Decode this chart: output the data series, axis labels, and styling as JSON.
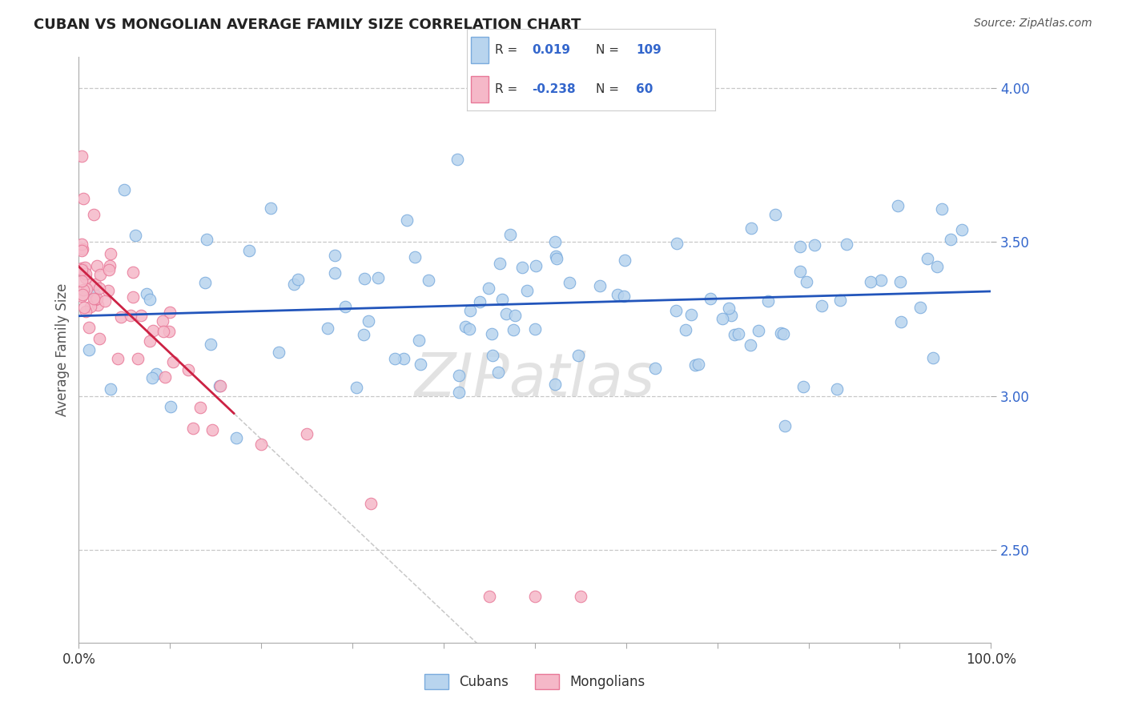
{
  "title": "CUBAN VS MONGOLIAN AVERAGE FAMILY SIZE CORRELATION CHART",
  "source_text": "Source: ZipAtlas.com",
  "ylabel": "Average Family Size",
  "xlim": [
    0,
    100
  ],
  "ylim": [
    2.2,
    4.1
  ],
  "yticks": [
    2.5,
    3.0,
    3.5,
    4.0
  ],
  "xtick_positions": [
    0,
    10,
    20,
    30,
    40,
    50,
    60,
    70,
    80,
    90,
    100
  ],
  "xtick_labels_show": {
    "0": "0.0%",
    "100": "100.0%"
  },
  "legend_R_blue": "0.019",
  "legend_N_blue": "109",
  "legend_R_pink": "-0.238",
  "legend_N_pink": "60",
  "blue_face": "#b8d4ee",
  "blue_edge": "#7aabdd",
  "pink_face": "#f5b8c8",
  "pink_edge": "#e87898",
  "trend_blue_color": "#2255bb",
  "trend_pink_color": "#cc2244",
  "grid_color": "#c8c8c8",
  "title_color": "#222222",
  "yticklabel_color": "#3366cc",
  "watermark_color": "#d0d0d0",
  "bg_color": "#ffffff",
  "legend_box_color": "#eeeeee",
  "legend_box_edge": "#cccccc",
  "source_color": "#555555",
  "bottom_legend_color": "#333333",
  "blue_trend_intercept": 3.26,
  "blue_trend_slope": 0.0008,
  "pink_trend_intercept": 3.42,
  "pink_trend_slope": -0.028,
  "pink_solid_end": 17,
  "pink_dashed_end": 100,
  "scatter_marker_size": 110
}
